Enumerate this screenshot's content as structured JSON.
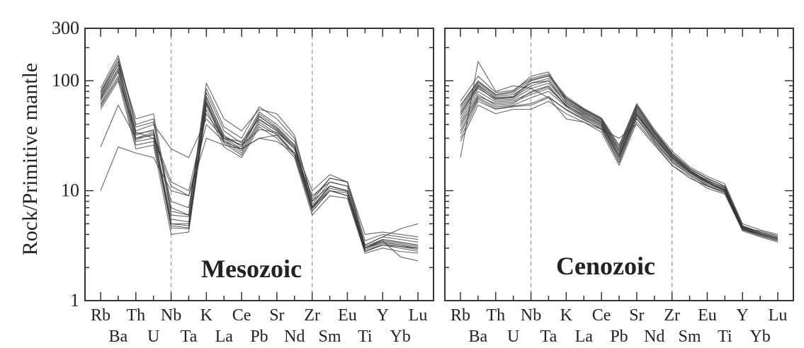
{
  "chart_data": {
    "type": "line",
    "ylabel": "Rock/Primitive mantle",
    "yscale": "log",
    "ylim": [
      1,
      300
    ],
    "yticks": [
      1,
      10,
      100,
      300
    ],
    "yticklabels": [
      "1",
      "10",
      "100",
      "300"
    ],
    "grid": false,
    "legend": "none",
    "categories": [
      "Rb",
      "Ba",
      "Th",
      "U",
      "Nb",
      "Ta",
      "K",
      "La",
      "Ce",
      "Pb",
      "Sr",
      "Nd",
      "Zr",
      "Sm",
      "Eu",
      "Ti",
      "Y",
      "Yb",
      "Lu"
    ],
    "colors": {
      "line": "#333333",
      "ref": "#9a9a9a",
      "frame": "#333333"
    },
    "panels": [
      {
        "title": "Mesozoic",
        "dashed_refs": [
          "Nb",
          "Zr"
        ],
        "series": [
          {
            "values": [
              75,
              150,
              32,
              36,
              5,
              5,
              70,
              32,
              25,
              50,
              38,
              26,
              7,
              11,
              10,
              3,
              3.6,
              3.4,
              3.2
            ]
          },
          {
            "values": [
              62,
              120,
              28,
              30,
              4.6,
              4.5,
              62,
              28,
              22,
              42,
              33,
              22,
              6.5,
              10,
              9.5,
              2.8,
              3.3,
              3.1,
              3
            ]
          },
          {
            "values": [
              85,
              170,
              40,
              45,
              6,
              5.8,
              85,
              38,
              30,
              58,
              45,
              30,
              8.5,
              13,
              12,
              3.5,
              4,
              3.8,
              3.6
            ]
          },
          {
            "values": [
              55,
              100,
              24,
              26,
              4,
              4.2,
              55,
              25,
              20,
              38,
              30,
              20,
              6,
              9,
              8.5,
              2.7,
              3,
              2.8,
              2.7
            ]
          },
          {
            "values": [
              10,
              25,
              22,
              20,
              10,
              9,
              30,
              26,
              24,
              30,
              28,
              22,
              9,
              12,
              11,
              3.2,
              3.8,
              4.5,
              5
            ]
          },
          {
            "values": [
              70,
              140,
              35,
              40,
              24,
              20,
              45,
              30,
              26,
              36,
              34,
              24,
              8,
              11,
              10,
              3,
              3.4,
              3.2,
              3
            ]
          },
          {
            "values": [
              25,
              60,
              30,
              32,
              12,
              10,
              50,
              30,
              28,
              45,
              35,
              25,
              10,
              14,
              12,
              4,
              4.2,
              4,
              3.8
            ]
          },
          {
            "values": [
              68,
              130,
              30,
              34,
              5.5,
              5.2,
              66,
              30,
              24,
              48,
              36,
              25,
              7,
              11,
              10,
              3,
              3.5,
              3.3,
              3.1
            ]
          },
          {
            "values": [
              78,
              150,
              45,
              50,
              7,
              6,
              95,
              45,
              35,
              55,
              50,
              32,
              8,
              13,
              12,
              3.2,
              3.8,
              3.6,
              3.4
            ]
          },
          {
            "values": [
              60,
              110,
              26,
              28,
              5,
              4.8,
              60,
              27,
              21,
              40,
              32,
              21,
              6.5,
              10,
              9,
              2.8,
              3.2,
              3,
              2.8
            ]
          },
          {
            "values": [
              80,
              160,
              38,
              42,
              6.5,
              6,
              78,
              35,
              27,
              52,
              40,
              28,
              7.5,
              12,
              11,
              3.1,
              3.6,
              3.4,
              3.2
            ]
          },
          {
            "values": [
              72,
              140,
              33,
              35,
              8,
              7,
              72,
              31,
              26,
              47,
              37,
              26,
              7.2,
              11,
              10,
              3,
              3.5,
              2.5,
              2.3
            ]
          },
          {
            "values": [
              66,
              125,
              29,
              33,
              4.8,
              4.6,
              64,
              29,
              23,
              44,
              35,
              24,
              6.8,
              10.5,
              9.8,
              2.9,
              3.4,
              3.2,
              3
            ]
          },
          {
            "values": [
              58,
              105,
              34,
              30,
              11,
              9,
              40,
              28,
              24,
              30,
              32,
              22,
              7,
              10,
              9,
              2.8,
              3.2,
              3.1,
              2.9
            ]
          }
        ]
      },
      {
        "title": "Cenozoic",
        "dashed_refs": [
          "Nb",
          "Zr"
        ],
        "series": [
          {
            "values": [
              40,
              75,
              60,
              62,
              80,
              90,
              60,
              48,
              40,
              20,
              50,
              30,
              20,
              15,
              12,
              10,
              4.6,
              4,
              3.6
            ]
          },
          {
            "values": [
              50,
              90,
              70,
              72,
              100,
              110,
              70,
              55,
              45,
              25,
              60,
              35,
              22,
              16,
              13,
              11,
              4.8,
              4.2,
              3.8
            ]
          },
          {
            "values": [
              30,
              65,
              55,
              58,
              60,
              70,
              55,
              45,
              36,
              18,
              45,
              28,
              18,
              14,
              11,
              9.5,
              4.4,
              3.9,
              3.5
            ]
          },
          {
            "values": [
              60,
              100,
              75,
              80,
              110,
              120,
              65,
              52,
              42,
              22,
              55,
              33,
              21,
              15,
              12.5,
              10.5,
              4.7,
              4.1,
              3.7
            ]
          },
          {
            "values": [
              35,
              70,
              58,
              60,
              70,
              80,
              58,
              46,
              38,
              19,
              48,
              29,
              19,
              14.5,
              11.5,
              10,
              4.5,
              4,
              3.6
            ]
          },
          {
            "values": [
              45,
              85,
              68,
              70,
              90,
              100,
              62,
              50,
              42,
              21,
              52,
              31,
              20,
              15,
              12,
              10.2,
              4.6,
              4,
              3.6
            ]
          },
          {
            "values": [
              20,
              150,
              80,
              90,
              85,
              70,
              45,
              42,
              36,
              30,
              40,
              26,
              17,
              13,
              11,
              9.8,
              4.6,
              4.3,
              3.9
            ]
          },
          {
            "values": [
              55,
              95,
              72,
              75,
              95,
              105,
              68,
              54,
              44,
              24,
              58,
              34,
              21.5,
              15.5,
              12.2,
              10.8,
              4.7,
              4.1,
              3.7
            ]
          },
          {
            "values": [
              38,
              72,
              62,
              64,
              75,
              85,
              60,
              47,
              39,
              20,
              49,
              30,
              19.5,
              14.5,
              11.8,
              10,
              4.5,
              3.9,
              3.5
            ]
          },
          {
            "values": [
              65,
              110,
              78,
              82,
              105,
              115,
              72,
              56,
              46,
              26,
              62,
              36,
              23,
              16.5,
              13.5,
              11.5,
              5,
              4.4,
              4
            ]
          },
          {
            "values": [
              28,
              60,
              50,
              55,
              55,
              65,
              50,
              42,
              34,
              17,
              42,
              27,
              17,
              13.5,
              10.5,
              9.3,
              4.3,
              3.8,
              3.4
            ]
          },
          {
            "values": [
              48,
              88,
              66,
              68,
              85,
              95,
              63,
              51,
              41,
              21,
              53,
              32,
              20.5,
              15,
              12,
              10.3,
              4.6,
              4,
              3.6
            ]
          },
          {
            "values": [
              42,
              80,
              64,
              66,
              78,
              88,
              59,
              49,
              40,
              20,
              50,
              31,
              20,
              14.8,
              11.9,
              10.1,
              4.5,
              4,
              3.6
            ]
          },
          {
            "values": [
              52,
              92,
              69,
              71,
              95,
              100,
              66,
              53,
              43,
              23,
              56,
              33,
              21,
              15.3,
              12.3,
              10.6,
              4.7,
              4.1,
              3.7
            ]
          },
          {
            "values": [
              33,
              68,
              56,
              59,
              62,
              72,
              54,
              44,
              37,
              18,
              46,
              28,
              18.5,
              14,
              11.2,
              9.7,
              4.4,
              3.9,
              3.5
            ]
          },
          {
            "values": [
              58,
              98,
              74,
              78,
              102,
              112,
              69,
              55,
              45,
              23,
              59,
              34,
              22,
              15.8,
              12.8,
              11,
              4.8,
              4.2,
              3.8
            ]
          }
        ]
      }
    ]
  }
}
